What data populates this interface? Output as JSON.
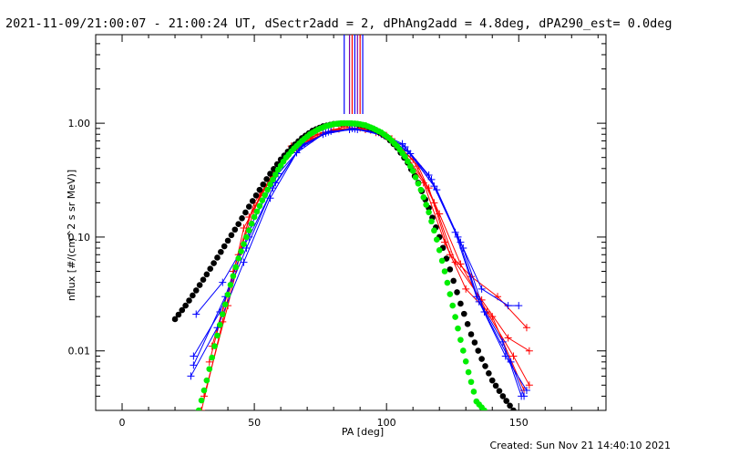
{
  "chart_data": {
    "type": "scatter",
    "title": "2021-11-09/21:00:07 - 21:00:24 UT, dSectr2add = 2, dPhAng2add = 4.8deg, dPA290_est=  0.0deg",
    "xlabel": "PA [deg]",
    "ylabel": "nflux [#/(cm^2 s sr MeV)]",
    "xlim": [
      -10,
      183
    ],
    "ylim": [
      0.003,
      6
    ],
    "yscale": "log",
    "x_ticks": [
      0,
      50,
      100,
      150
    ],
    "x_tick_labels": [
      "0",
      "50",
      "100",
      "150"
    ],
    "y_ticks": [
      0.01,
      0.1,
      1.0
    ],
    "y_tick_labels": [
      "0.01",
      "0.10",
      "1.00"
    ],
    "grid": false,
    "colors": {
      "black_fit": "#000000",
      "green_fit": "#00ee00",
      "red_data": "#ff0000",
      "blue_data": "#0000ff",
      "purple_marker": "#7a00aa"
    },
    "vertical_markers_x": [
      84,
      86,
      87,
      88,
      89,
      90,
      91
    ],
    "series": [
      {
        "color": "black",
        "style": "dots",
        "x": [
          20,
          24,
          28,
          32,
          36,
          40,
          44,
          48,
          52,
          56,
          60,
          64,
          68,
          72,
          76,
          80,
          84,
          88,
          92,
          96,
          100,
          104,
          108,
          112,
          116,
          120,
          124,
          128,
          132,
          136,
          140,
          144,
          148
        ],
        "y": [
          0.019,
          0.025,
          0.034,
          0.047,
          0.066,
          0.093,
          0.13,
          0.185,
          0.26,
          0.36,
          0.48,
          0.61,
          0.74,
          0.86,
          0.94,
          0.985,
          1.0,
          0.99,
          0.95,
          0.87,
          0.76,
          0.61,
          0.45,
          0.3,
          0.18,
          0.1,
          0.052,
          0.026,
          0.014,
          0.0085,
          0.0055,
          0.004,
          0.003
        ]
      },
      {
        "color": "green",
        "style": "dots",
        "x": [
          29,
          32,
          35,
          38,
          41,
          44,
          47,
          50,
          53,
          56,
          59,
          62,
          65,
          68,
          71,
          74,
          77,
          80,
          83,
          86,
          89,
          92,
          95,
          98,
          101,
          104,
          107,
          110,
          113,
          116,
          119,
          122,
          125,
          128,
          131,
          134,
          137
        ],
        "y": [
          0.003,
          0.0055,
          0.011,
          0.021,
          0.038,
          0.065,
          0.1,
          0.15,
          0.21,
          0.29,
          0.39,
          0.5,
          0.6,
          0.7,
          0.8,
          0.88,
          0.94,
          0.98,
          1.0,
          1.0,
          0.99,
          0.96,
          0.9,
          0.83,
          0.74,
          0.63,
          0.51,
          0.38,
          0.26,
          0.165,
          0.095,
          0.05,
          0.025,
          0.0125,
          0.0065,
          0.0036,
          0.003
        ]
      },
      {
        "color": "red",
        "style": "line+cross",
        "x": [
          30,
          38,
          46,
          56,
          64,
          74,
          84,
          94,
          104,
          114,
          122,
          130,
          140,
          152
        ],
        "y": [
          0.003,
          0.018,
          0.12,
          0.32,
          0.63,
          0.8,
          0.93,
          0.87,
          0.63,
          0.3,
          0.09,
          0.035,
          0.02,
          0.0045
        ]
      },
      {
        "color": "red",
        "style": "line+cross",
        "x": [
          31,
          40,
          48,
          57,
          66,
          76,
          86,
          96,
          106,
          116,
          124,
          132,
          142,
          153
        ],
        "y": [
          0.004,
          0.025,
          0.15,
          0.36,
          0.65,
          0.83,
          0.9,
          0.83,
          0.58,
          0.27,
          0.07,
          0.045,
          0.03,
          0.016
        ]
      },
      {
        "color": "red",
        "style": "line+cross",
        "x": [
          33,
          42,
          50,
          60,
          70,
          80,
          90,
          100,
          110,
          118,
          126,
          136,
          146,
          154
        ],
        "y": [
          0.008,
          0.05,
          0.2,
          0.45,
          0.7,
          0.88,
          0.91,
          0.78,
          0.48,
          0.2,
          0.06,
          0.028,
          0.013,
          0.01
        ]
      },
      {
        "color": "red",
        "style": "line+cross",
        "x": [
          34,
          44,
          52,
          62,
          72,
          82,
          92,
          102,
          112,
          120,
          128,
          138,
          148,
          154
        ],
        "y": [
          0.011,
          0.07,
          0.23,
          0.5,
          0.73,
          0.89,
          0.88,
          0.73,
          0.42,
          0.16,
          0.058,
          0.022,
          0.009,
          0.005
        ]
      },
      {
        "color": "blue",
        "style": "line+cross",
        "x": [
          26,
          36,
          46,
          56,
          66,
          76,
          86,
          96,
          106,
          116,
          126,
          134,
          144,
          151
        ],
        "y": [
          0.006,
          0.016,
          0.06,
          0.22,
          0.55,
          0.8,
          0.88,
          0.85,
          0.66,
          0.35,
          0.11,
          0.03,
          0.012,
          0.004
        ]
      },
      {
        "color": "blue",
        "style": "line+cross",
        "x": [
          27,
          37,
          47,
          57,
          67,
          77,
          87,
          97,
          107,
          117,
          127,
          135,
          145,
          153
        ],
        "y": [
          0.009,
          0.022,
          0.08,
          0.27,
          0.6,
          0.82,
          0.9,
          0.83,
          0.62,
          0.32,
          0.1,
          0.027,
          0.009,
          0.0045
        ]
      },
      {
        "color": "blue",
        "style": "line+cross",
        "x": [
          28,
          38,
          48,
          58,
          68,
          78,
          88,
          98,
          108,
          118,
          128,
          136,
          146,
          150
        ],
        "y": [
          0.021,
          0.04,
          0.1,
          0.3,
          0.64,
          0.84,
          0.89,
          0.8,
          0.57,
          0.28,
          0.09,
          0.035,
          0.025,
          0.025
        ]
      },
      {
        "color": "blue",
        "style": "line+cross",
        "x": [
          27,
          39,
          49,
          59,
          69,
          79,
          89,
          99,
          109,
          119,
          129,
          137,
          147,
          152
        ],
        "y": [
          0.0075,
          0.03,
          0.13,
          0.36,
          0.66,
          0.85,
          0.88,
          0.78,
          0.54,
          0.26,
          0.08,
          0.022,
          0.008,
          0.004
        ]
      }
    ]
  },
  "footer": {
    "created": "Created: Sun Nov 21 14:40:10 2021"
  }
}
